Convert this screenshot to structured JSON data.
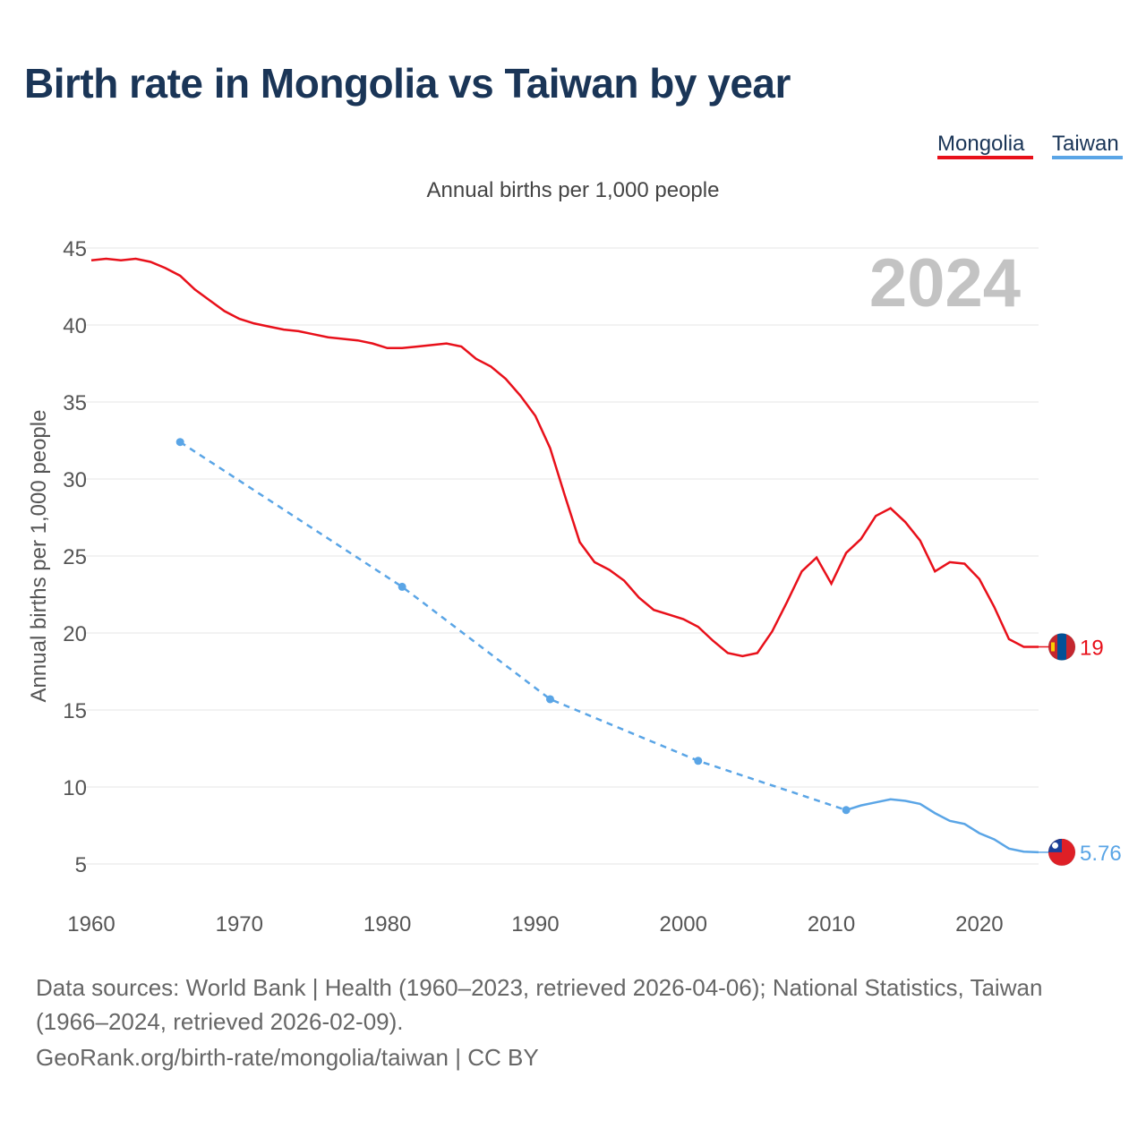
{
  "header": {
    "title": "Birth rate in Mongolia vs Taiwan by year"
  },
  "legend": [
    {
      "label": "Mongolia",
      "color": "#e8101a"
    },
    {
      "label": "Taiwan",
      "color": "#5aa5e6"
    }
  ],
  "footer": {
    "sources": "Data sources: World Bank | Health (1960–2023, retrieved 2026-04-06); National Statistics, Taiwan (1966–2024, retrieved 2026-02-09).",
    "attribution": "GeoRank.org/birth-rate/mongolia/taiwan | CC BY"
  },
  "chart_data": {
    "type": "line",
    "title": "Annual births per 1,000 people",
    "xlabel": "",
    "ylabel": "Annual births per 1,000 people",
    "watermark_year": "2024",
    "xlim": [
      1960,
      2024
    ],
    "ylim": [
      5,
      45
    ],
    "x_ticks": [
      1960,
      1970,
      1980,
      1990,
      2000,
      2010,
      2020
    ],
    "y_ticks": [
      5,
      10,
      15,
      20,
      25,
      30,
      35,
      40,
      45
    ],
    "grid": true,
    "legend_position": "top-right",
    "series": [
      {
        "name": "Mongolia",
        "color": "#e8101a",
        "flag": "mongolia-flag",
        "end_label": "19",
        "style": "solid",
        "points": [
          [
            1960,
            44.2
          ],
          [
            1961,
            44.3
          ],
          [
            1962,
            44.2
          ],
          [
            1963,
            44.3
          ],
          [
            1964,
            44.1
          ],
          [
            1965,
            43.7
          ],
          [
            1966,
            43.2
          ],
          [
            1967,
            42.3
          ],
          [
            1968,
            41.6
          ],
          [
            1969,
            40.9
          ],
          [
            1970,
            40.4
          ],
          [
            1971,
            40.1
          ],
          [
            1972,
            39.9
          ],
          [
            1973,
            39.7
          ],
          [
            1974,
            39.6
          ],
          [
            1975,
            39.4
          ],
          [
            1976,
            39.2
          ],
          [
            1977,
            39.1
          ],
          [
            1978,
            39.0
          ],
          [
            1979,
            38.8
          ],
          [
            1980,
            38.5
          ],
          [
            1981,
            38.5
          ],
          [
            1982,
            38.6
          ],
          [
            1983,
            38.7
          ],
          [
            1984,
            38.8
          ],
          [
            1985,
            38.6
          ],
          [
            1986,
            37.8
          ],
          [
            1987,
            37.3
          ],
          [
            1988,
            36.5
          ],
          [
            1989,
            35.4
          ],
          [
            1990,
            34.1
          ],
          [
            1991,
            32.0
          ],
          [
            1992,
            28.9
          ],
          [
            1993,
            25.9
          ],
          [
            1994,
            24.6
          ],
          [
            1995,
            24.1
          ],
          [
            1996,
            23.4
          ],
          [
            1997,
            22.3
          ],
          [
            1998,
            21.5
          ],
          [
            1999,
            21.2
          ],
          [
            2000,
            20.9
          ],
          [
            2001,
            20.4
          ],
          [
            2002,
            19.5
          ],
          [
            2003,
            18.7
          ],
          [
            2004,
            18.5
          ],
          [
            2005,
            18.7
          ],
          [
            2006,
            20.1
          ],
          [
            2007,
            22.0
          ],
          [
            2008,
            24.0
          ],
          [
            2009,
            24.9
          ],
          [
            2010,
            23.2
          ],
          [
            2011,
            25.2
          ],
          [
            2012,
            26.1
          ],
          [
            2013,
            27.6
          ],
          [
            2014,
            28.1
          ],
          [
            2015,
            27.2
          ],
          [
            2016,
            26.0
          ],
          [
            2017,
            24.0
          ],
          [
            2018,
            24.6
          ],
          [
            2019,
            24.5
          ],
          [
            2020,
            23.5
          ],
          [
            2021,
            21.7
          ],
          [
            2022,
            19.6
          ],
          [
            2023,
            19.1
          ],
          [
            2024,
            19.1
          ]
        ]
      },
      {
        "name": "Taiwan",
        "color": "#5aa5e6",
        "flag": "taiwan-flag",
        "end_label": "5.76",
        "dashed_until": 2011,
        "markers": [
          1966,
          1981,
          1991,
          2001,
          2011
        ],
        "points": [
          [
            1966,
            32.4
          ],
          [
            1981,
            23.0
          ],
          [
            1991,
            15.7
          ],
          [
            2001,
            11.7
          ],
          [
            2011,
            8.5
          ],
          [
            2012,
            8.8
          ],
          [
            2013,
            9.0
          ],
          [
            2014,
            9.2
          ],
          [
            2015,
            9.1
          ],
          [
            2016,
            8.9
          ],
          [
            2017,
            8.3
          ],
          [
            2018,
            7.8
          ],
          [
            2019,
            7.6
          ],
          [
            2020,
            7.0
          ],
          [
            2021,
            6.6
          ],
          [
            2022,
            6.0
          ],
          [
            2023,
            5.8
          ],
          [
            2024,
            5.76
          ]
        ]
      }
    ]
  }
}
